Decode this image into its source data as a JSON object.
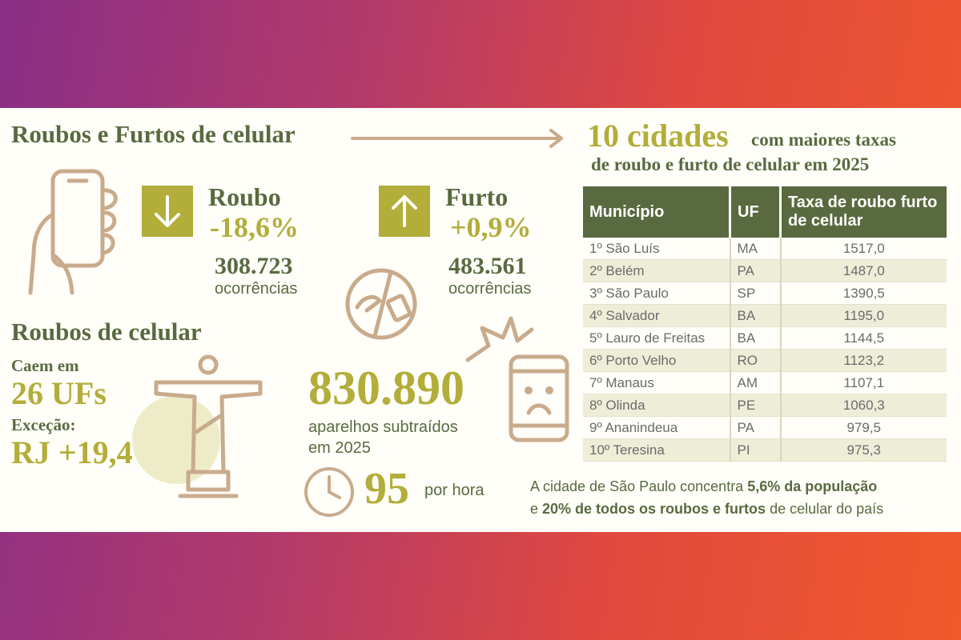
{
  "left": {
    "title": "Roubos e Furtos de celular",
    "roubo": {
      "label": "Roubo",
      "change": "-18,6%",
      "count": "308.723",
      "unit": "ocorrências"
    },
    "furto": {
      "label": "Furto",
      "change": "+0,9%",
      "count": "483.561",
      "unit": "ocorrências"
    },
    "roubos_title": "Roubos de celular",
    "caem_em": "Caem em",
    "ufs": "26 UFs",
    "excecao": "Exceção:",
    "rj": "RJ +19,4%",
    "total": "830.890",
    "total_text": [
      "aparelhos subtraídos",
      "em 2025"
    ],
    "per_hour": "95",
    "per_hour_unit": "por hora"
  },
  "right": {
    "title_big": "10 cidades",
    "title_rest": "com maiores taxas",
    "title_line2": "de roubo e furto de celular em 2025",
    "table": {
      "headers": [
        "Município",
        "UF",
        "Taxa de roubo furto de celular"
      ],
      "rows": [
        [
          "1º São Luís",
          "MA",
          "1517,0"
        ],
        [
          "2º Belém",
          "PA",
          "1487,0"
        ],
        [
          "3º São Paulo",
          "SP",
          "1390,5"
        ],
        [
          "4º Salvador",
          "BA",
          "1195,0"
        ],
        [
          "5º Lauro de Freitas",
          "BA",
          "1144,5"
        ],
        [
          "6º Porto Velho",
          "RO",
          "1123,2"
        ],
        [
          "7º Manaus",
          "AM",
          "1107,1"
        ],
        [
          "8º Olinda",
          "PE",
          "1060,3"
        ],
        [
          "9º Ananindeua",
          "PA",
          "979,5"
        ],
        [
          "10º Teresina",
          "PI",
          "975,3"
        ]
      ]
    },
    "note": [
      "A cidade de São Paulo concentra ",
      "5,6% da população",
      "e ",
      "20% de todos os roubos e furtos",
      " de celular do país"
    ]
  }
}
